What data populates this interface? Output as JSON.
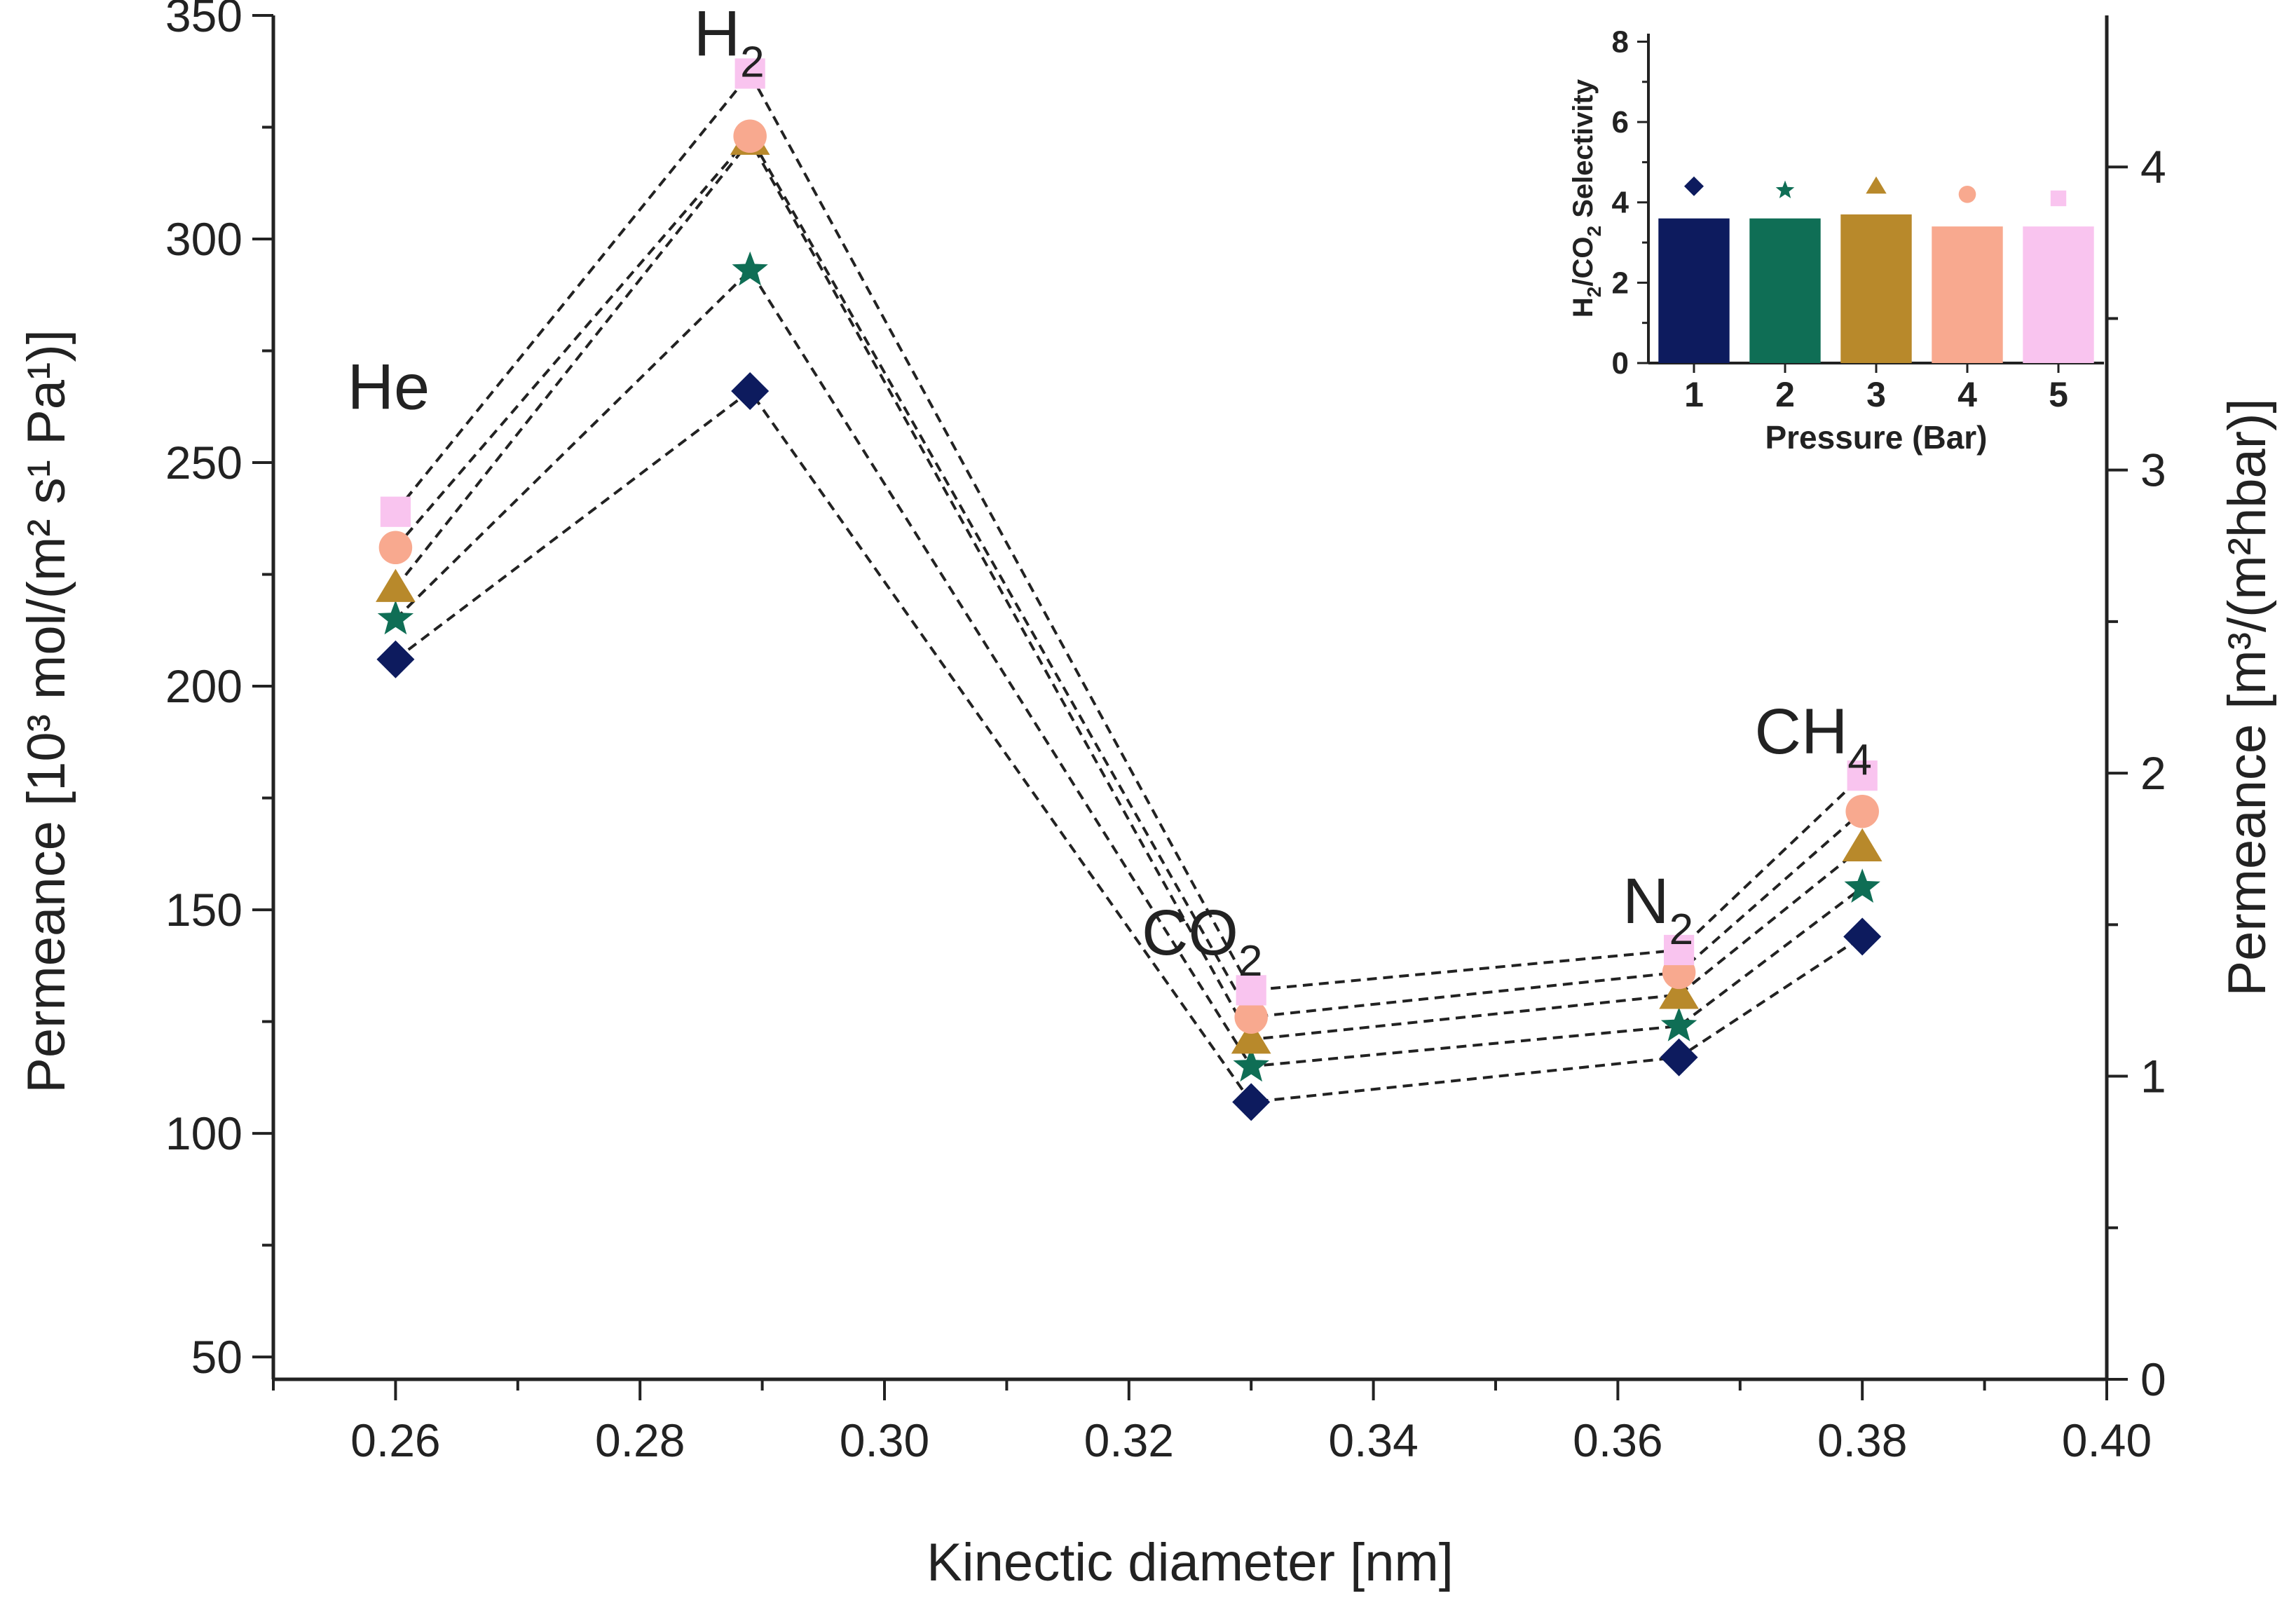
{
  "chart_data": [
    {
      "type": "scatter",
      "xlabel": "Kinectic diameter [nm]",
      "ylabel_left": "Permeance [10³ mol/(m² s¹ Pa¹)]",
      "ylabel_right": "Permeance [m³/(m²hbar)]",
      "xlim": [
        0.25,
        0.4
      ],
      "ylim_left": [
        45,
        350
      ],
      "ylim_right": [
        0,
        4.5
      ],
      "x_ticks": [
        "0.26",
        "0.28",
        "0.30",
        "0.32",
        "0.34",
        "0.36",
        "0.38",
        "0.40"
      ],
      "y_ticks_left": [
        "50",
        "100",
        "150",
        "200",
        "250",
        "300",
        "350"
      ],
      "y_ticks_right": [
        "0",
        "1",
        "2",
        "3",
        "4"
      ],
      "gas_labels": [
        {
          "gas": "He",
          "main": "He",
          "sub": ""
        },
        {
          "gas": "H2",
          "main": "H",
          "sub": "2"
        },
        {
          "gas": "CO2",
          "main": "CO",
          "sub": "2"
        },
        {
          "gas": "N2",
          "main": "N",
          "sub": "2"
        },
        {
          "gas": "CH4",
          "main": "CH",
          "sub": "4"
        }
      ],
      "x": [
        0.26,
        0.289,
        0.33,
        0.365,
        0.38
      ],
      "series": [
        {
          "marker": "diamond",
          "color": "#0d1b5e",
          "values": [
            206,
            266,
            107,
            117,
            144
          ]
        },
        {
          "marker": "star",
          "color": "#0f6e55",
          "values": [
            215,
            293,
            115,
            124,
            155
          ]
        },
        {
          "marker": "triangle",
          "color": "#b8892b",
          "values": [
            222,
            322,
            121,
            131,
            164
          ]
        },
        {
          "marker": "circle",
          "color": "#f8a98f",
          "values": [
            231,
            323,
            126,
            136,
            172
          ]
        },
        {
          "marker": "square",
          "color": "#f9c4ef",
          "values": [
            239,
            337,
            132,
            141,
            180
          ]
        }
      ],
      "line_style": "dashed",
      "line_color": "#222222"
    },
    {
      "type": "bar",
      "inset": true,
      "xlabel": "Pressure (Bar)",
      "ylabel_main": "H",
      "ylabel_sub1": "2",
      "ylabel_mid": "/CO",
      "ylabel_sub2": "2",
      "ylabel_tail": " Selectivity",
      "categories": [
        "1",
        "2",
        "3",
        "4",
        "5"
      ],
      "values": [
        3.6,
        3.6,
        3.7,
        3.4,
        3.4
      ],
      "marker_values": [
        4.4,
        4.3,
        4.4,
        4.2,
        4.1
      ],
      "colors": [
        "#0d1b5e",
        "#0f6e55",
        "#b8892b",
        "#f8a98f",
        "#f9c4ef"
      ],
      "markers": [
        "diamond",
        "star",
        "triangle",
        "circle",
        "square"
      ],
      "ylim": [
        0,
        8.2
      ],
      "y_ticks": [
        "0",
        "2",
        "4",
        "6",
        "8"
      ]
    }
  ]
}
